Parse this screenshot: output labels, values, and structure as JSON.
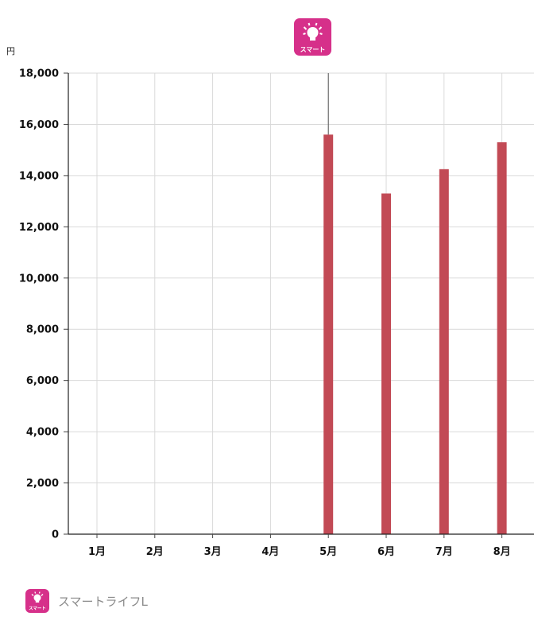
{
  "chart_data": {
    "type": "bar",
    "categories": [
      "1月",
      "2月",
      "3月",
      "4月",
      "5月",
      "6月",
      "7月",
      "8月"
    ],
    "series": [
      {
        "name": "スマートライフL",
        "color": "#c24a55",
        "values": [
          null,
          null,
          null,
          null,
          15600,
          13300,
          14250,
          15300
        ]
      }
    ],
    "ylabel": "円",
    "ylim": [
      0,
      18000
    ],
    "yticks": [
      0,
      2000,
      4000,
      6000,
      8000,
      10000,
      12000,
      14000,
      16000,
      18000
    ],
    "ytick_labels": [
      "0",
      "2,000",
      "4,000",
      "6,000",
      "8,000",
      "10,000",
      "12,000",
      "14,000",
      "16,000",
      "18,000"
    ],
    "grid": true,
    "legend": "bottom-left"
  },
  "badge": {
    "text": "スマート",
    "color": "#d6308a",
    "icon": "lightbulb-icon"
  },
  "legend": {
    "label": "スマートライフL"
  }
}
